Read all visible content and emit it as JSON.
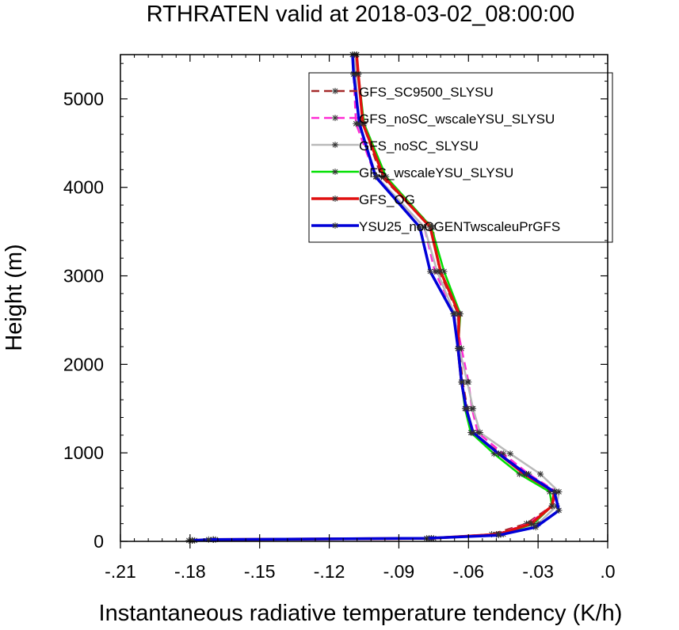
{
  "chart_data": {
    "type": "line",
    "title": "RTHRATEN valid at 2018-03-02_08:00:00",
    "xlabel": "Instantaneous radiative temperature tendency (K/h)",
    "ylabel": "Height (m)",
    "xlim": [
      -0.21,
      0.0
    ],
    "ylim": [
      0,
      5500
    ],
    "xticks": [
      -0.21,
      -0.18,
      -0.15,
      -0.12,
      -0.09,
      -0.06,
      -0.03,
      0.0
    ],
    "xtick_labels": [
      "-.21",
      "-.18",
      "-.15",
      "-.12",
      "-.09",
      "-.06",
      "-.03",
      ".0"
    ],
    "yticks": [
      0,
      1000,
      2000,
      3000,
      4000,
      5000
    ],
    "ytick_labels": [
      "0",
      "1000",
      "2000",
      "3000",
      "4000",
      "5000"
    ],
    "grid": false,
    "legend_position": "top-right",
    "series": [
      {
        "name": "GFS_SC9500_SLYSU",
        "color": "#a52a2a",
        "dash": "dashed",
        "points": [
          [
            -0.1805,
            10
          ],
          [
            -0.17,
            20
          ],
          [
            -0.077,
            35
          ],
          [
            -0.05,
            80
          ],
          [
            -0.035,
            200
          ],
          [
            -0.024,
            400
          ],
          [
            -0.023,
            560
          ],
          [
            -0.035,
            760
          ],
          [
            -0.046,
            990
          ],
          [
            -0.0585,
            1230
          ],
          [
            -0.0605,
            1500
          ],
          [
            -0.0625,
            1800
          ],
          [
            -0.064,
            2180
          ],
          [
            -0.0645,
            2570
          ],
          [
            -0.0725,
            3050
          ],
          [
            -0.0755,
            3550
          ],
          [
            -0.0975,
            4120
          ],
          [
            -0.1055,
            4720
          ],
          [
            -0.1075,
            5280
          ],
          [
            -0.1082,
            5500
          ]
        ]
      },
      {
        "name": "GFS_noSC_wscaleYSU_SLYSU",
        "color": "#ff2ad4",
        "dash": "dashed",
        "points": [
          [
            -0.179,
            10
          ],
          [
            -0.17,
            20
          ],
          [
            -0.076,
            35
          ],
          [
            -0.048,
            80
          ],
          [
            -0.034,
            200
          ],
          [
            -0.024,
            400
          ],
          [
            -0.022,
            560
          ],
          [
            -0.034,
            760
          ],
          [
            -0.045,
            990
          ],
          [
            -0.056,
            1230
          ],
          [
            -0.0585,
            1500
          ],
          [
            -0.06,
            1800
          ],
          [
            -0.063,
            2180
          ],
          [
            -0.066,
            2570
          ],
          [
            -0.0745,
            3050
          ],
          [
            -0.079,
            3550
          ],
          [
            -0.1,
            4120
          ],
          [
            -0.1085,
            4720
          ],
          [
            -0.1095,
            5280
          ],
          [
            -0.11,
            5500
          ]
        ]
      },
      {
        "name": "GFS_noSC_SLYSU",
        "color": "#b9b9b9",
        "dash": "solid",
        "points": [
          [
            -0.179,
            10
          ],
          [
            -0.17,
            20
          ],
          [
            -0.076,
            35
          ],
          [
            -0.046,
            80
          ],
          [
            -0.03,
            200
          ],
          [
            -0.022,
            400
          ],
          [
            -0.021,
            560
          ],
          [
            -0.029,
            760
          ],
          [
            -0.042,
            990
          ],
          [
            -0.055,
            1230
          ],
          [
            -0.058,
            1500
          ],
          [
            -0.0605,
            1800
          ],
          [
            -0.064,
            2180
          ],
          [
            -0.066,
            2570
          ],
          [
            -0.0735,
            3050
          ],
          [
            -0.079,
            3550
          ],
          [
            -0.0995,
            4120
          ],
          [
            -0.1075,
            4720
          ],
          [
            -0.1085,
            5280
          ],
          [
            -0.1092,
            5500
          ]
        ]
      },
      {
        "name": "GFS_wscaleYSU_SLYSU",
        "color": "#00e000",
        "dash": "solid",
        "points": [
          [
            -0.178,
            10
          ],
          [
            -0.169,
            20
          ],
          [
            -0.075,
            35
          ],
          [
            -0.045,
            80
          ],
          [
            -0.032,
            200
          ],
          [
            -0.024,
            400
          ],
          [
            -0.025,
            560
          ],
          [
            -0.038,
            760
          ],
          [
            -0.049,
            990
          ],
          [
            -0.059,
            1230
          ],
          [
            -0.0615,
            1500
          ],
          [
            -0.063,
            1800
          ],
          [
            -0.0645,
            2180
          ],
          [
            -0.0635,
            2570
          ],
          [
            -0.0705,
            3050
          ],
          [
            -0.076,
            3550
          ],
          [
            -0.0955,
            4120
          ],
          [
            -0.105,
            4720
          ],
          [
            -0.1075,
            5280
          ],
          [
            -0.1082,
            5500
          ]
        ]
      },
      {
        "name": "GFS_OG",
        "color": "#e01010",
        "dash": "solid",
        "points": [
          [
            -0.179,
            10
          ],
          [
            -0.17,
            20
          ],
          [
            -0.076,
            35
          ],
          [
            -0.047,
            80
          ],
          [
            -0.033,
            200
          ],
          [
            -0.024,
            400
          ],
          [
            -0.023,
            560
          ],
          [
            -0.036,
            760
          ],
          [
            -0.047,
            990
          ],
          [
            -0.058,
            1230
          ],
          [
            -0.061,
            1500
          ],
          [
            -0.063,
            1800
          ],
          [
            -0.0645,
            2180
          ],
          [
            -0.064,
            2570
          ],
          [
            -0.072,
            3050
          ],
          [
            -0.0765,
            3550
          ],
          [
            -0.0965,
            4120
          ],
          [
            -0.1055,
            4720
          ],
          [
            -0.1075,
            5280
          ],
          [
            -0.1082,
            5500
          ]
        ]
      },
      {
        "name": "YSU25_noCGENTwscaleuPrGFS",
        "color": "#0000d8",
        "dash": "solid",
        "points": [
          [
            -0.179,
            10
          ],
          [
            -0.172,
            20
          ],
          [
            -0.078,
            35
          ],
          [
            -0.047,
            70
          ],
          [
            -0.031,
            160
          ],
          [
            -0.021,
            350
          ],
          [
            -0.023,
            560
          ],
          [
            -0.035,
            760
          ],
          [
            -0.047,
            990
          ],
          [
            -0.058,
            1230
          ],
          [
            -0.061,
            1500
          ],
          [
            -0.063,
            1800
          ],
          [
            -0.0645,
            2180
          ],
          [
            -0.0665,
            2570
          ],
          [
            -0.0765,
            3050
          ],
          [
            -0.081,
            3550
          ],
          [
            -0.1,
            4120
          ],
          [
            -0.107,
            4720
          ],
          [
            -0.1095,
            5280
          ],
          [
            -0.11,
            5500
          ]
        ]
      }
    ]
  }
}
